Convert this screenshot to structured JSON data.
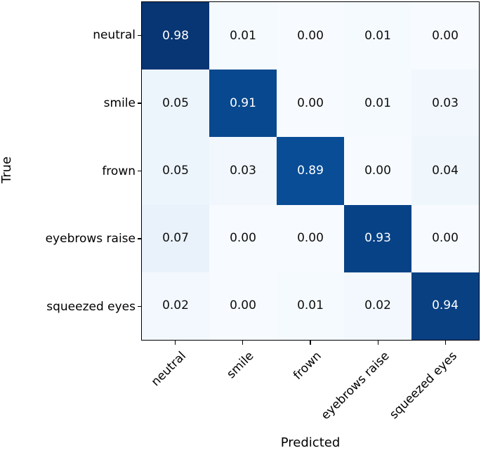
{
  "chart_data": {
    "type": "heatmap",
    "title": "",
    "xlabel": "Predicted",
    "ylabel": "True",
    "x_categories": [
      "neutral",
      "smile",
      "frown",
      "eyebrows raise",
      "squeezed eyes"
    ],
    "y_categories": [
      "neutral",
      "smile",
      "frown",
      "eyebrows raise",
      "squeezed eyes"
    ],
    "matrix": [
      [
        0.98,
        0.01,
        0.0,
        0.01,
        0.0
      ],
      [
        0.05,
        0.91,
        0.0,
        0.01,
        0.03
      ],
      [
        0.05,
        0.03,
        0.89,
        0.0,
        0.04
      ],
      [
        0.07,
        0.0,
        0.0,
        0.93,
        0.0
      ],
      [
        0.02,
        0.0,
        0.01,
        0.02,
        0.94
      ]
    ],
    "value_decimals": 2,
    "colormap": "Blues",
    "value_range": [
      0,
      1
    ],
    "grid": false,
    "legend": "none",
    "x_tick_rotation_deg": 45
  },
  "colors": {
    "cell_colors": [
      [
        "#083573",
        "#f5fafe",
        "#f7fbff",
        "#f5fafe",
        "#f7fbff"
      ],
      [
        "#edf5fc",
        "#08488e",
        "#f7fbff",
        "#f5fafe",
        "#f1f7fd"
      ],
      [
        "#edf5fc",
        "#f1f7fd",
        "#084d96",
        "#f7fbff",
        "#eff6fc"
      ],
      [
        "#e9f2fa",
        "#f7fbff",
        "#f7fbff",
        "#084286",
        "#f7fbff"
      ],
      [
        "#f3f8fe",
        "#f7fbff",
        "#f5fafe",
        "#f3f8fe",
        "#084082"
      ]
    ],
    "value_text_dark": "#0f0f0f",
    "value_text_light": "#ffffff",
    "spine": "#000000"
  }
}
